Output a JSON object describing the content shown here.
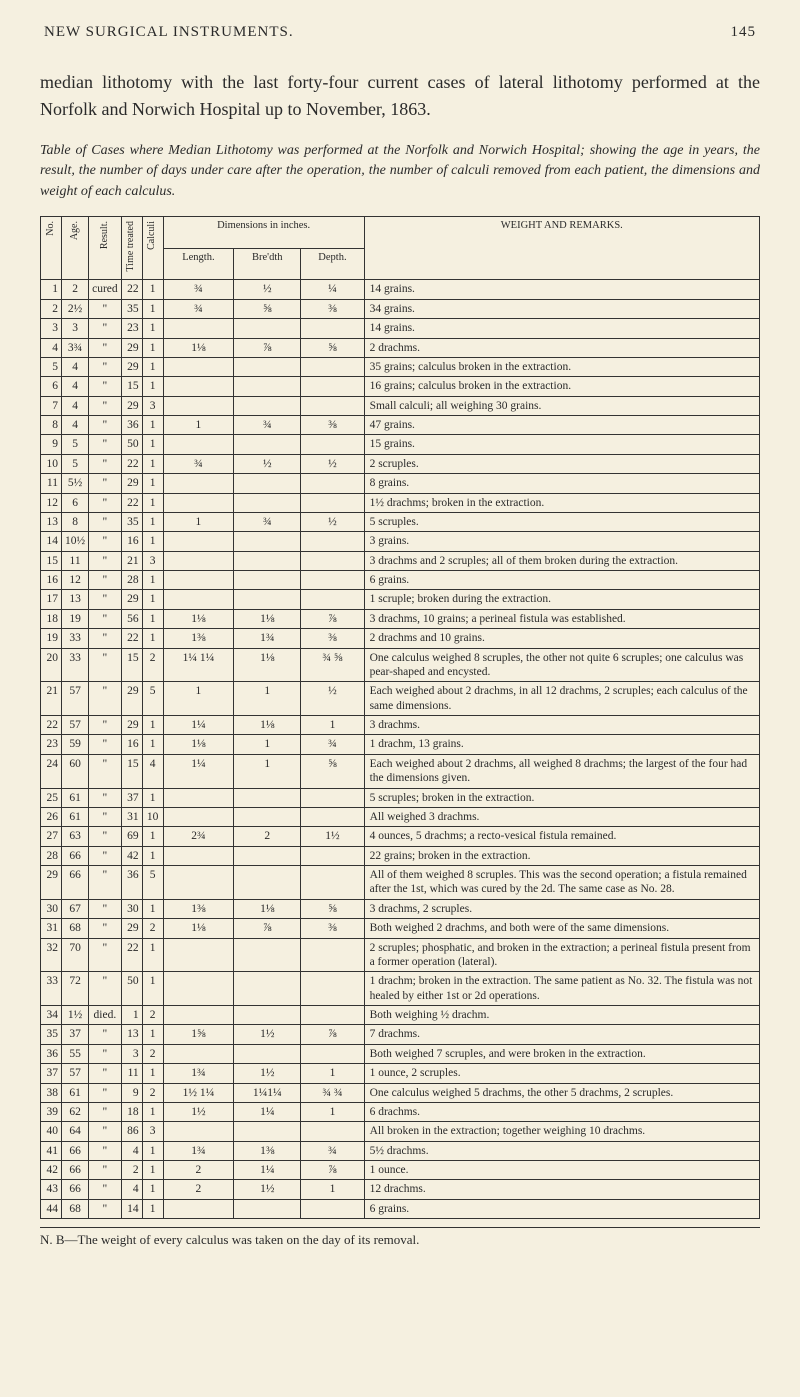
{
  "page_number": "145",
  "running_title": "NEW SURGICAL INSTRUMENTS.",
  "body_paragraph": "median lithotomy with the last forty-four current cases of lateral lithotomy performed at the Norfolk and Norwich Hospital up to November, 1863.",
  "table_caption": "Table of Cases where Median Lithotomy was performed at the Norfolk and Norwich Hospital; showing the age in years, the result, the number of days under care after the operation, the number of calculi removed from each patient, the dimensions and weight of each calculus.",
  "columns": {
    "no": "No.",
    "age": "Age.",
    "result": "Result.",
    "time": "Time treated",
    "calculi": "Calculi",
    "dimensions_group": "Dimensions in inches.",
    "length": "Length.",
    "breadth": "Bre'dth",
    "depth": "Depth.",
    "remarks": "WEIGHT AND REMARKS."
  },
  "rows": [
    {
      "no": "1",
      "age": "2",
      "result": "cured",
      "time": "22",
      "calc": "1",
      "len": "¾",
      "bre": "½",
      "dep": "¼",
      "rem": "14 grains."
    },
    {
      "no": "2",
      "age": "2½",
      "result": "\"",
      "time": "35",
      "calc": "1",
      "len": "¾",
      "bre": "⅝",
      "dep": "⅜",
      "rem": "34 grains."
    },
    {
      "no": "3",
      "age": "3",
      "result": "\"",
      "time": "23",
      "calc": "1",
      "len": "",
      "bre": "",
      "dep": "",
      "rem": "14 grains."
    },
    {
      "no": "4",
      "age": "3¾",
      "result": "\"",
      "time": "29",
      "calc": "1",
      "len": "1⅛",
      "bre": "⅞",
      "dep": "⅝",
      "rem": "2 drachms."
    },
    {
      "no": "5",
      "age": "4",
      "result": "\"",
      "time": "29",
      "calc": "1",
      "len": "",
      "bre": "",
      "dep": "",
      "rem": "35 grains; calculus broken in the extraction."
    },
    {
      "no": "6",
      "age": "4",
      "result": "\"",
      "time": "15",
      "calc": "1",
      "len": "",
      "bre": "",
      "dep": "",
      "rem": "16 grains; calculus broken in the extraction."
    },
    {
      "no": "7",
      "age": "4",
      "result": "\"",
      "time": "29",
      "calc": "3",
      "len": "",
      "bre": "",
      "dep": "",
      "rem": "Small calculi; all weighing 30 grains."
    },
    {
      "no": "8",
      "age": "4",
      "result": "\"",
      "time": "36",
      "calc": "1",
      "len": "1",
      "bre": "¾",
      "dep": "⅜",
      "rem": "47 grains."
    },
    {
      "no": "9",
      "age": "5",
      "result": "\"",
      "time": "50",
      "calc": "1",
      "len": "",
      "bre": "",
      "dep": "",
      "rem": "15 grains."
    },
    {
      "no": "10",
      "age": "5",
      "result": "\"",
      "time": "22",
      "calc": "1",
      "len": "¾",
      "bre": "½",
      "dep": "½",
      "rem": "2 scruples."
    },
    {
      "no": "11",
      "age": "5½",
      "result": "\"",
      "time": "29",
      "calc": "1",
      "len": "",
      "bre": "",
      "dep": "",
      "rem": "8 grains."
    },
    {
      "no": "12",
      "age": "6",
      "result": "\"",
      "time": "22",
      "calc": "1",
      "len": "",
      "bre": "",
      "dep": "",
      "rem": "1½ drachms; broken in the extraction."
    },
    {
      "no": "13",
      "age": "8",
      "result": "\"",
      "time": "35",
      "calc": "1",
      "len": "1",
      "bre": "¾",
      "dep": "½",
      "rem": "5 scruples."
    },
    {
      "no": "14",
      "age": "10½",
      "result": "\"",
      "time": "16",
      "calc": "1",
      "len": "",
      "bre": "",
      "dep": "",
      "rem": "3 grains."
    },
    {
      "no": "15",
      "age": "11",
      "result": "\"",
      "time": "21",
      "calc": "3",
      "len": "",
      "bre": "",
      "dep": "",
      "rem": "3 drachms and 2 scruples; all of them broken during the extraction."
    },
    {
      "no": "16",
      "age": "12",
      "result": "\"",
      "time": "28",
      "calc": "1",
      "len": "",
      "bre": "",
      "dep": "",
      "rem": "6 grains."
    },
    {
      "no": "17",
      "age": "13",
      "result": "\"",
      "time": "29",
      "calc": "1",
      "len": "",
      "bre": "",
      "dep": "",
      "rem": "1 scruple; broken during the extraction."
    },
    {
      "no": "18",
      "age": "19",
      "result": "\"",
      "time": "56",
      "calc": "1",
      "len": "1⅛",
      "bre": "1⅛",
      "dep": "⅞",
      "rem": "3 drachms, 10 grains; a perineal fistula was established."
    },
    {
      "no": "19",
      "age": "33",
      "result": "\"",
      "time": "22",
      "calc": "1",
      "len": "1⅜",
      "bre": "1¾",
      "dep": "⅜",
      "rem": "2 drachms and 10 grains."
    },
    {
      "no": "20",
      "age": "33",
      "result": "\"",
      "time": "15",
      "calc": "2",
      "len": "1¼ 1¼",
      "bre": "1⅛",
      "dep": "¾ ⅝",
      "rem": "One calculus weighed 8 scruples, the other not quite 6 scruples; one calculus was pear-shaped and encysted."
    },
    {
      "no": "21",
      "age": "57",
      "result": "\"",
      "time": "29",
      "calc": "5",
      "len": "1",
      "bre": "1",
      "dep": "½",
      "rem": "Each weighed about 2 drachms, in all 12 drachms, 2 scruples; each calculus of the same dimensions."
    },
    {
      "no": "22",
      "age": "57",
      "result": "\"",
      "time": "29",
      "calc": "1",
      "len": "1¼",
      "bre": "1⅛",
      "dep": "1",
      "rem": "3 drachms."
    },
    {
      "no": "23",
      "age": "59",
      "result": "\"",
      "time": "16",
      "calc": "1",
      "len": "1⅛",
      "bre": "1",
      "dep": "¾",
      "rem": "1 drachm, 13 grains."
    },
    {
      "no": "24",
      "age": "60",
      "result": "\"",
      "time": "15",
      "calc": "4",
      "len": "1¼",
      "bre": "1",
      "dep": "⅝",
      "rem": "Each weighed about 2 drachms, all weighed 8 drachms; the largest of the four had the dimensions given."
    },
    {
      "no": "25",
      "age": "61",
      "result": "\"",
      "time": "37",
      "calc": "1",
      "len": "",
      "bre": "",
      "dep": "",
      "rem": "5 scruples; broken in the extraction."
    },
    {
      "no": "26",
      "age": "61",
      "result": "\"",
      "time": "31",
      "calc": "10",
      "len": "",
      "bre": "",
      "dep": "",
      "rem": "All weighed 3 drachms."
    },
    {
      "no": "27",
      "age": "63",
      "result": "\"",
      "time": "69",
      "calc": "1",
      "len": "2¾",
      "bre": "2",
      "dep": "1½",
      "rem": "4 ounces, 5 drachms; a recto-vesical fistula remained."
    },
    {
      "no": "28",
      "age": "66",
      "result": "\"",
      "time": "42",
      "calc": "1",
      "len": "",
      "bre": "",
      "dep": "",
      "rem": "22 grains; broken in the extraction."
    },
    {
      "no": "29",
      "age": "66",
      "result": "\"",
      "time": "36",
      "calc": "5",
      "len": "",
      "bre": "",
      "dep": "",
      "rem": "All of them weighed 8 scruples. This was the second operation; a fistula remained after the 1st, which was cured by the 2d. The same case as No. 28."
    },
    {
      "no": "30",
      "age": "67",
      "result": "\"",
      "time": "30",
      "calc": "1",
      "len": "1⅜",
      "bre": "1⅛",
      "dep": "⅝",
      "rem": "3 drachms, 2 scruples."
    },
    {
      "no": "31",
      "age": "68",
      "result": "\"",
      "time": "29",
      "calc": "2",
      "len": "1⅛",
      "bre": "⅞",
      "dep": "⅜",
      "rem": "Both weighed 2 drachms, and both were of the same dimensions."
    },
    {
      "no": "32",
      "age": "70",
      "result": "\"",
      "time": "22",
      "calc": "1",
      "len": "",
      "bre": "",
      "dep": "",
      "rem": "2 scruples; phosphatic, and broken in the extraction; a perineal fistula present from a former operation (lateral)."
    },
    {
      "no": "33",
      "age": "72",
      "result": "\"",
      "time": "50",
      "calc": "1",
      "len": "",
      "bre": "",
      "dep": "",
      "rem": "1 drachm; broken in the extraction. The same patient as No. 32. The fistula was not healed by either 1st or 2d operations."
    },
    {
      "no": "34",
      "age": "1½",
      "result": "died.",
      "time": "1",
      "calc": "2",
      "len": "",
      "bre": "",
      "dep": "",
      "rem": "Both weighing ½ drachm."
    },
    {
      "no": "35",
      "age": "37",
      "result": "\"",
      "time": "13",
      "calc": "1",
      "len": "1⅝",
      "bre": "1½",
      "dep": "⅞",
      "rem": "7 drachms."
    },
    {
      "no": "36",
      "age": "55",
      "result": "\"",
      "time": "3",
      "calc": "2",
      "len": "",
      "bre": "",
      "dep": "",
      "rem": "Both weighed 7 scruples, and were broken in the extraction."
    },
    {
      "no": "37",
      "age": "57",
      "result": "\"",
      "time": "11",
      "calc": "1",
      "len": "1¾",
      "bre": "1½",
      "dep": "1",
      "rem": "1 ounce, 2 scruples."
    },
    {
      "no": "38",
      "age": "61",
      "result": "\"",
      "time": "9",
      "calc": "2",
      "len": "1½ 1¼",
      "bre": "1¼1¼",
      "dep": "¾ ¾",
      "rem": "One calculus weighed 5 drachms, the other 5 drachms, 2 scruples."
    },
    {
      "no": "39",
      "age": "62",
      "result": "\"",
      "time": "18",
      "calc": "1",
      "len": "1½",
      "bre": "1¼",
      "dep": "1",
      "rem": "6 drachms."
    },
    {
      "no": "40",
      "age": "64",
      "result": "\"",
      "time": "86",
      "calc": "3",
      "len": "",
      "bre": "",
      "dep": "",
      "rem": "All broken in the extraction; together weighing 10 drachms."
    },
    {
      "no": "41",
      "age": "66",
      "result": "\"",
      "time": "4",
      "calc": "1",
      "len": "1¾",
      "bre": "1⅜",
      "dep": "¾",
      "rem": "5½ drachms."
    },
    {
      "no": "42",
      "age": "66",
      "result": "\"",
      "time": "2",
      "calc": "1",
      "len": "2",
      "bre": "1¼",
      "dep": "⅞",
      "rem": "1 ounce."
    },
    {
      "no": "43",
      "age": "66",
      "result": "\"",
      "time": "4",
      "calc": "1",
      "len": "2",
      "bre": "1½",
      "dep": "1",
      "rem": "12 drachms."
    },
    {
      "no": "44",
      "age": "68",
      "result": "\"",
      "time": "14",
      "calc": "1",
      "len": "",
      "bre": "",
      "dep": "",
      "rem": "6 grains."
    }
  ],
  "footnote": "N. B—The weight of every calculus was taken on the day of its removal."
}
